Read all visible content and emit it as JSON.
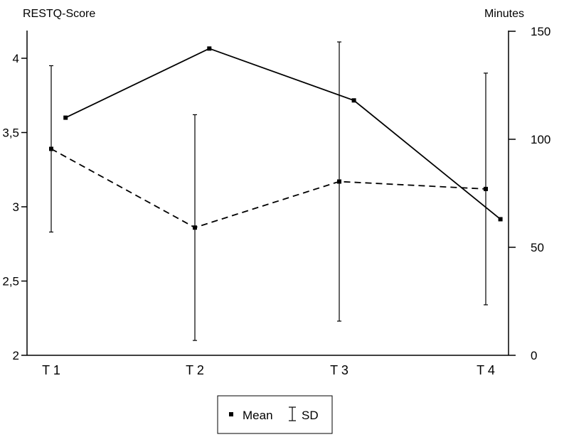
{
  "chart_data": {
    "type": "line",
    "title": "",
    "ylabel": "RESTQ-Score",
    "y2label": "Minutes",
    "categories": [
      "T 1",
      "T 2",
      "T 3",
      "T 4"
    ],
    "ylim": [
      2,
      4.2
    ],
    "y2lim": [
      0,
      150
    ],
    "y_ticks": [
      2,
      2.5,
      3,
      3.5,
      4
    ],
    "y_tick_labels": [
      "2",
      "2,5",
      "3",
      "3,5",
      "4"
    ],
    "y2_ticks": [
      0,
      50,
      100,
      150
    ],
    "y2_tick_labels": [
      "0",
      "50",
      "100",
      "150"
    ],
    "series": [
      {
        "style": "solid",
        "axis": "right",
        "x": [
          1.1,
          2.1,
          3.1,
          4.1
        ],
        "values": [
          110,
          142,
          118,
          63
        ]
      },
      {
        "style": "dashed",
        "axis": "left",
        "x": [
          1.0,
          2.0,
          3.0,
          4.0
        ],
        "values": [
          3.39,
          2.86,
          3.17,
          3.12
        ],
        "sd_low": [
          2.83,
          2.1,
          2.23,
          2.34
        ],
        "sd_high": [
          3.95,
          3.62,
          4.11,
          3.9
        ]
      }
    ],
    "grid": false,
    "legend": {
      "position": "bottom-center",
      "mean_label": "Mean",
      "sd_label": "SD"
    }
  }
}
